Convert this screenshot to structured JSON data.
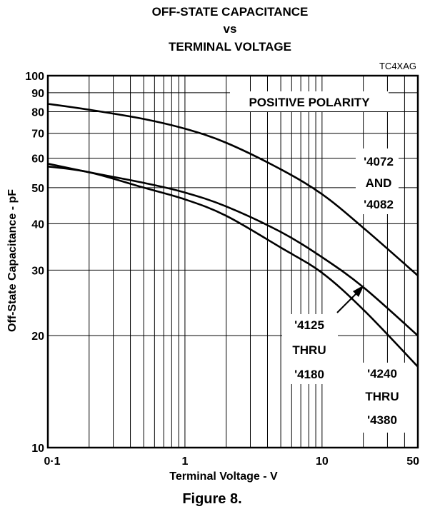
{
  "chart_data": {
    "type": "line",
    "title": [
      "OFF-STATE CAPACITANCE",
      "vs",
      "TERMINAL VOLTAGE"
    ],
    "code": "TC4XAG",
    "xlabel": "Terminal Voltage  - V",
    "ylabel": "Off-State Capacitance - pF",
    "x_scale": "log",
    "y_scale": "log",
    "xlim": [
      0.1,
      50
    ],
    "ylim": [
      10,
      100
    ],
    "x_ticks": [
      "0·1",
      "1",
      "10",
      "50"
    ],
    "x_tick_values": [
      0.1,
      1,
      10,
      50
    ],
    "y_ticks": [
      "10",
      "20",
      "30",
      "40",
      "50",
      "60",
      "70",
      "80",
      "90",
      "100"
    ],
    "y_tick_values": [
      10,
      20,
      30,
      40,
      50,
      60,
      70,
      80,
      90,
      100
    ],
    "grid": true,
    "annotation_polarity": "POSITIVE POLARITY",
    "series": [
      {
        "label_lines": [
          "'4072",
          "AND",
          "'4082"
        ],
        "x": [
          0.1,
          0.2,
          0.5,
          1,
          2,
          5,
          10,
          20,
          50
        ],
        "y": [
          84,
          81,
          76.5,
          72,
          66,
          56,
          48,
          39,
          29
        ]
      },
      {
        "label_lines": [
          "'4125",
          "THRU",
          "'4180"
        ],
        "x": [
          0.1,
          0.2,
          0.5,
          1,
          2,
          5,
          10,
          20,
          50
        ],
        "y": [
          58,
          55,
          51.5,
          48.5,
          44.5,
          38,
          32.5,
          27,
          20
        ]
      },
      {
        "label_lines": [
          "'4240",
          "THRU",
          "'4380"
        ],
        "x": [
          0.1,
          0.2,
          0.5,
          1,
          2,
          5,
          10,
          20,
          50
        ],
        "y": [
          57,
          55,
          50,
          46.5,
          42,
          34.5,
          29.5,
          23.5,
          16.5
        ]
      }
    ]
  },
  "caption": "Figure 8."
}
